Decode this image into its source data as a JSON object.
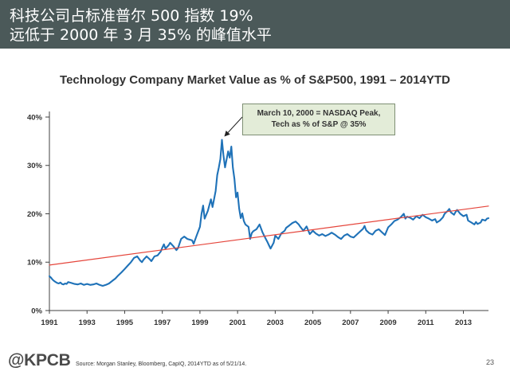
{
  "slide": {
    "headline": [
      "科技公司占标准普尔 500 指数 19%",
      "远低于 2000 年 3 月 35% 的峰值水平"
    ]
  },
  "theme": {
    "header_background": "#4b5959",
    "annotation_fill": "#e3ecd8",
    "annotation_border": "#7e8f74",
    "axis": "#404040",
    "arrow": "#222222"
  },
  "chart_data": {
    "type": "line",
    "title": "Technology Company Market Value as % of S&P500, 1991 – 2014YTD",
    "xlabel": "",
    "ylabel": "",
    "xlim": [
      "1991-01",
      "2014-05"
    ],
    "ylim": [
      0,
      40
    ],
    "x_ticks": [
      "1991",
      "1993",
      "1995",
      "1997",
      "1999",
      "2001",
      "2003",
      "2005",
      "2007",
      "2009",
      "2011",
      "2013"
    ],
    "y_ticks": [
      "0%",
      "10%",
      "20%",
      "30%",
      "40%"
    ],
    "grid": false,
    "legend": "none",
    "series": [
      {
        "color": "#1f72b8",
        "points": [
          [
            "1991-01",
            7.1
          ],
          [
            "1991-02",
            6.8
          ],
          [
            "1991-03",
            6.4
          ],
          [
            "1991-04",
            6.1
          ],
          [
            "1991-05",
            5.9
          ],
          [
            "1991-06",
            5.7
          ],
          [
            "1991-07",
            5.6
          ],
          [
            "1991-08",
            5.8
          ],
          [
            "1991-09",
            5.5
          ],
          [
            "1991-10",
            5.4
          ],
          [
            "1991-11",
            5.6
          ],
          [
            "1991-12",
            5.5
          ],
          [
            "1992-01",
            5.9
          ],
          [
            "1992-03",
            5.7
          ],
          [
            "1992-05",
            5.5
          ],
          [
            "1992-07",
            5.4
          ],
          [
            "1992-09",
            5.6
          ],
          [
            "1992-11",
            5.3
          ],
          [
            "1993-01",
            5.5
          ],
          [
            "1993-03",
            5.3
          ],
          [
            "1993-05",
            5.4
          ],
          [
            "1993-07",
            5.6
          ],
          [
            "1993-09",
            5.3
          ],
          [
            "1993-11",
            5.1
          ],
          [
            "1994-01",
            5.3
          ],
          [
            "1994-03",
            5.6
          ],
          [
            "1994-05",
            6.1
          ],
          [
            "1994-07",
            6.6
          ],
          [
            "1994-09",
            7.3
          ],
          [
            "1994-11",
            7.9
          ],
          [
            "1995-01",
            8.6
          ],
          [
            "1995-03",
            9.3
          ],
          [
            "1995-05",
            10.0
          ],
          [
            "1995-07",
            10.9
          ],
          [
            "1995-09",
            11.2
          ],
          [
            "1995-11",
            10.3
          ],
          [
            "1995-12",
            10.0
          ],
          [
            "1996-01",
            10.5
          ],
          [
            "1996-03",
            11.2
          ],
          [
            "1996-05",
            10.6
          ],
          [
            "1996-06",
            10.2
          ],
          [
            "1996-07",
            10.7
          ],
          [
            "1996-08",
            11.2
          ],
          [
            "1996-10",
            11.4
          ],
          [
            "1996-12",
            12.2
          ],
          [
            "1997-01",
            13.0
          ],
          [
            "1997-02",
            13.7
          ],
          [
            "1997-03",
            12.8
          ],
          [
            "1997-05",
            13.5
          ],
          [
            "1997-06",
            14.0
          ],
          [
            "1997-08",
            13.3
          ],
          [
            "1997-10",
            12.5
          ],
          [
            "1997-11",
            12.9
          ],
          [
            "1998-01",
            14.8
          ],
          [
            "1998-03",
            15.3
          ],
          [
            "1998-05",
            14.8
          ],
          [
            "1998-07",
            14.6
          ],
          [
            "1998-08",
            14.5
          ],
          [
            "1998-09",
            13.8
          ],
          [
            "1998-11",
            15.6
          ],
          [
            "1999-01",
            17.3
          ],
          [
            "1999-02",
            20.0
          ],
          [
            "1999-03",
            21.7
          ],
          [
            "1999-04",
            19.0
          ],
          [
            "1999-05",
            19.8
          ],
          [
            "1999-06",
            20.6
          ],
          [
            "1999-08",
            23.0
          ],
          [
            "1999-09",
            21.4
          ],
          [
            "1999-10",
            23.0
          ],
          [
            "1999-11",
            24.7
          ],
          [
            "1999-12",
            28.0
          ],
          [
            "2000-01",
            29.5
          ],
          [
            "2000-02",
            31.3
          ],
          [
            "2000-03",
            35.3
          ],
          [
            "2000-04",
            32.1
          ],
          [
            "2000-05",
            29.6
          ],
          [
            "2000-06",
            31.3
          ],
          [
            "2000-07",
            32.9
          ],
          [
            "2000-08",
            31.6
          ],
          [
            "2000-09",
            33.9
          ],
          [
            "2000-10",
            29.6
          ],
          [
            "2000-11",
            27.2
          ],
          [
            "2000-12",
            23.4
          ],
          [
            "2001-01",
            24.4
          ],
          [
            "2001-02",
            21.1
          ],
          [
            "2001-03",
            19.1
          ],
          [
            "2001-04",
            20.1
          ],
          [
            "2001-05",
            18.5
          ],
          [
            "2001-06",
            17.8
          ],
          [
            "2001-08",
            17.3
          ],
          [
            "2001-09",
            14.8
          ],
          [
            "2001-10",
            16.0
          ],
          [
            "2001-11",
            16.4
          ],
          [
            "2002-01",
            16.8
          ],
          [
            "2002-03",
            17.8
          ],
          [
            "2002-05",
            16.1
          ],
          [
            "2002-07",
            14.8
          ],
          [
            "2002-08",
            14.2
          ],
          [
            "2002-09",
            13.5
          ],
          [
            "2002-10",
            12.8
          ],
          [
            "2002-12",
            14.0
          ],
          [
            "2003-01",
            15.5
          ],
          [
            "2003-03",
            14.8
          ],
          [
            "2003-05",
            16.0
          ],
          [
            "2003-07",
            16.5
          ],
          [
            "2003-08",
            17.1
          ],
          [
            "2003-10",
            17.6
          ],
          [
            "2003-12",
            18.1
          ],
          [
            "2004-02",
            18.4
          ],
          [
            "2004-04",
            17.8
          ],
          [
            "2004-05",
            17.3
          ],
          [
            "2004-07",
            16.5
          ],
          [
            "2004-09",
            17.4
          ],
          [
            "2004-11",
            15.8
          ],
          [
            "2005-01",
            16.5
          ],
          [
            "2005-03",
            15.9
          ],
          [
            "2005-05",
            15.5
          ],
          [
            "2005-07",
            15.8
          ],
          [
            "2005-09",
            15.4
          ],
          [
            "2005-11",
            15.7
          ],
          [
            "2006-01",
            16.1
          ],
          [
            "2006-03",
            15.7
          ],
          [
            "2006-05",
            15.2
          ],
          [
            "2006-07",
            14.8
          ],
          [
            "2006-09",
            15.5
          ],
          [
            "2006-11",
            15.8
          ],
          [
            "2007-01",
            15.3
          ],
          [
            "2007-03",
            15.1
          ],
          [
            "2007-05",
            15.7
          ],
          [
            "2007-07",
            16.3
          ],
          [
            "2007-09",
            16.9
          ],
          [
            "2007-10",
            17.5
          ],
          [
            "2007-11",
            16.6
          ],
          [
            "2008-01",
            16.0
          ],
          [
            "2008-03",
            15.7
          ],
          [
            "2008-05",
            16.5
          ],
          [
            "2008-07",
            16.8
          ],
          [
            "2008-09",
            16.2
          ],
          [
            "2008-11",
            15.6
          ],
          [
            "2008-12",
            16.4
          ],
          [
            "2009-01",
            17.2
          ],
          [
            "2009-03",
            17.8
          ],
          [
            "2009-05",
            18.5
          ],
          [
            "2009-07",
            18.8
          ],
          [
            "2009-09",
            19.3
          ],
          [
            "2009-11",
            20.0
          ],
          [
            "2009-12",
            19.0
          ],
          [
            "2010-01",
            19.4
          ],
          [
            "2010-03",
            19.2
          ],
          [
            "2010-05",
            18.8
          ],
          [
            "2010-07",
            19.5
          ],
          [
            "2010-09",
            19.1
          ],
          [
            "2010-11",
            19.8
          ],
          [
            "2011-01",
            19.3
          ],
          [
            "2011-03",
            19.0
          ],
          [
            "2011-05",
            18.6
          ],
          [
            "2011-07",
            18.9
          ],
          [
            "2011-08",
            18.2
          ],
          [
            "2011-10",
            18.6
          ],
          [
            "2011-12",
            19.3
          ],
          [
            "2012-01",
            20.0
          ],
          [
            "2012-03",
            20.6
          ],
          [
            "2012-04",
            21.0
          ],
          [
            "2012-05",
            20.3
          ],
          [
            "2012-07",
            19.8
          ],
          [
            "2012-08",
            20.4
          ],
          [
            "2012-09",
            20.8
          ],
          [
            "2012-11",
            20.0
          ],
          [
            "2013-01",
            19.5
          ],
          [
            "2013-03",
            19.8
          ],
          [
            "2013-04",
            18.6
          ],
          [
            "2013-06",
            18.2
          ],
          [
            "2013-08",
            17.8
          ],
          [
            "2013-09",
            18.3
          ],
          [
            "2013-10",
            17.9
          ],
          [
            "2013-12",
            18.2
          ],
          [
            "2014-01",
            18.8
          ],
          [
            "2014-03",
            18.6
          ],
          [
            "2014-04",
            19.0
          ],
          [
            "2014-05",
            19.1
          ]
        ]
      },
      {
        "color": "#e5453b",
        "points": [
          [
            "1991-01",
            9.4
          ],
          [
            "2014-05",
            21.6
          ]
        ]
      }
    ],
    "annotations": [
      {
        "lines": [
          "March 10, 2000 = NASDAQ Peak,",
          "Tech as % of S&P @ 35%"
        ]
      }
    ]
  },
  "footer": {
    "logo_text": "@KPCB",
    "source": "Source: Morgan Stanley, Bloomberg, CapIQ, 2014YTD as of 5/21/14.",
    "page_number": "23"
  }
}
